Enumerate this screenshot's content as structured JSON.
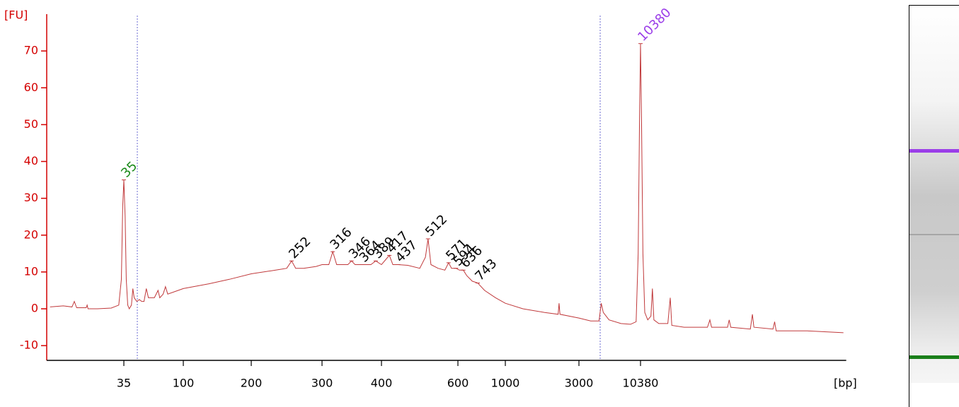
{
  "chart_data": {
    "type": "line",
    "y_label": "[FU]",
    "x_label": "[bp]",
    "color": "#c0393b",
    "axis_color": "#d40000",
    "ylim": [
      -14,
      80
    ],
    "yticks": [
      -10,
      0,
      10,
      20,
      30,
      40,
      50,
      60,
      70
    ],
    "xlim": [
      9,
      620000
    ],
    "xticks": [
      35,
      100,
      200,
      300,
      400,
      600,
      1000,
      3000,
      10380
    ],
    "x": [
      9.5,
      12,
      14,
      14.6,
      15.2,
      18,
      18.3,
      18.6,
      22,
      28,
      32,
      33.5,
      34.3,
      35,
      35.8,
      36.5,
      37.5,
      38.5,
      40,
      41,
      42,
      44,
      46,
      48,
      50,
      52,
      54,
      60,
      64,
      66,
      70,
      73,
      76,
      100,
      130,
      160,
      200,
      230,
      245,
      252,
      258,
      270,
      290,
      300,
      310,
      316,
      322,
      340,
      346,
      352,
      364,
      380,
      389,
      400,
      417,
      425,
      437,
      460,
      490,
      505,
      512,
      520,
      540,
      560,
      571,
      580,
      594,
      610,
      636,
      660,
      700,
      743,
      800,
      900,
      1000,
      1300,
      1800,
      2200,
      2230,
      2260,
      3000,
      3800,
      4500,
      4700,
      4900,
      5500,
      7000,
      8500,
      9500,
      9900,
      10200,
      10380,
      10600,
      10900,
      11300,
      12000,
      12800,
      13200,
      13600,
      15000,
      18000,
      18900,
      19500,
      25000,
      40000,
      42000,
      43500,
      60000,
      62000,
      64000,
      95000,
      99000,
      102000,
      150000,
      155000,
      160000,
      300000,
      620000
    ],
    "values": [
      0.5,
      0.8,
      0.5,
      2,
      0.3,
      0.3,
      1,
      0,
      0,
      0.2,
      1,
      8,
      28,
      35,
      25,
      8,
      1,
      0,
      1,
      5.5,
      3,
      2,
      2.5,
      2,
      2,
      5.5,
      3,
      3,
      5,
      3,
      4,
      6,
      4,
      5.5,
      6.8,
      8,
      9.5,
      10.5,
      11,
      13,
      11,
      11,
      11.5,
      12,
      12,
      15.5,
      12,
      12,
      13,
      12,
      12,
      12,
      13,
      12,
      14.5,
      12,
      12,
      11.8,
      11,
      14,
      19,
      12,
      11,
      10.5,
      12.5,
      11,
      11,
      10.5,
      10.5,
      9,
      7.5,
      7,
      5,
      3,
      1.5,
      0,
      -1,
      -1.5,
      1.5,
      -1.5,
      -2.5,
      -3.3,
      -3.3,
      1.5,
      -1,
      -3,
      -4,
      -4.2,
      -3.5,
      15,
      55,
      72,
      50,
      15,
      -1,
      -3,
      -2,
      5.5,
      -3,
      -4,
      -4,
      3,
      -4.5,
      -5,
      -5,
      -3,
      -5,
      -5,
      -3,
      -5,
      -5.5,
      -1.5,
      -5,
      -5.5,
      -3.5,
      -6,
      -6,
      -6.5
    ],
    "peaks": [
      {
        "x": 35,
        "y": 35,
        "color": "#1a8a1a"
      },
      {
        "x": 252,
        "y": 13
      },
      {
        "x": 316,
        "y": 15.5
      },
      {
        "x": 346,
        "y": 13
      },
      {
        "x": 364,
        "y": 12
      },
      {
        "x": 389,
        "y": 13
      },
      {
        "x": 417,
        "y": 14.5
      },
      {
        "x": 437,
        "y": 12
      },
      {
        "x": 512,
        "y": 19
      },
      {
        "x": 571,
        "y": 12.5
      },
      {
        "x": 594,
        "y": 11
      },
      {
        "x": 636,
        "y": 10.5
      },
      {
        "x": 743,
        "y": 7
      },
      {
        "x": 10380,
        "y": 72,
        "color": "#9b3ee8"
      }
    ]
  }
}
